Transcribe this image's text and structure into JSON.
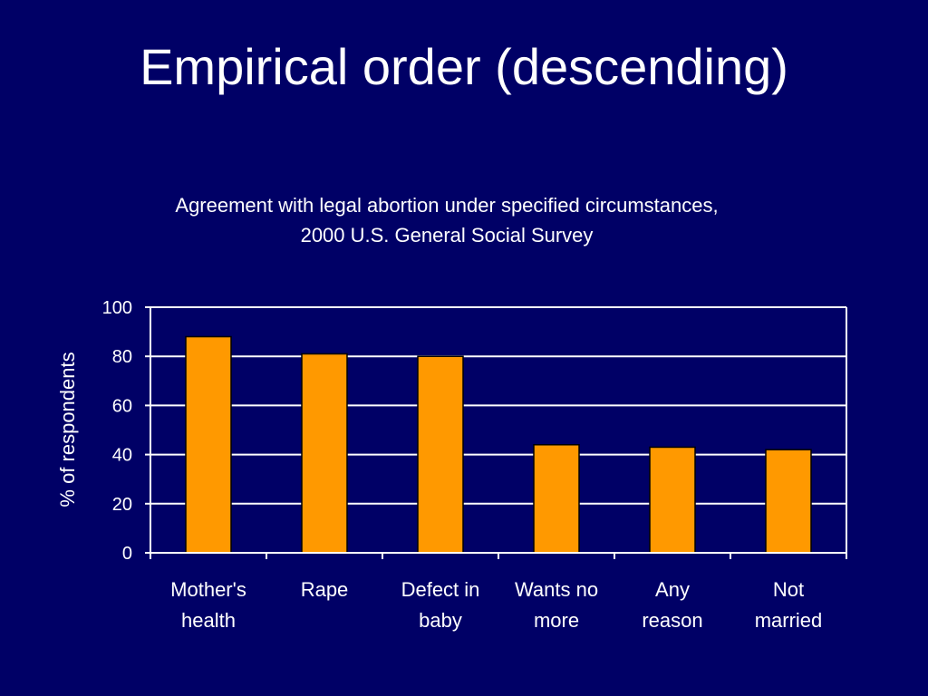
{
  "slide": {
    "title": "Empirical order (descending)"
  },
  "chart_data": {
    "type": "bar",
    "title_lines": [
      "Agreement with legal abortion under specified circumstances,",
      "2000 U.S. General Social Survey"
    ],
    "categories": [
      [
        "Mother's",
        "health"
      ],
      [
        "Rape"
      ],
      [
        "Defect in",
        "baby"
      ],
      [
        "Wants no",
        "more"
      ],
      [
        "Any",
        "reason"
      ],
      [
        "Not",
        "married"
      ]
    ],
    "values": [
      88,
      81,
      80,
      44,
      43,
      42
    ],
    "xlabel": "",
    "ylabel": "% of respondents",
    "ylim": [
      0,
      100
    ],
    "yticks": [
      0,
      20,
      40,
      60,
      80,
      100
    ],
    "grid": true,
    "legend": "none",
    "colors": {
      "background": "#000066",
      "bar_fill": "#ff9900",
      "bar_stroke": "#000000",
      "axis": "#ffffff",
      "gridline": "#ffffff",
      "text": "#ffffff"
    }
  }
}
